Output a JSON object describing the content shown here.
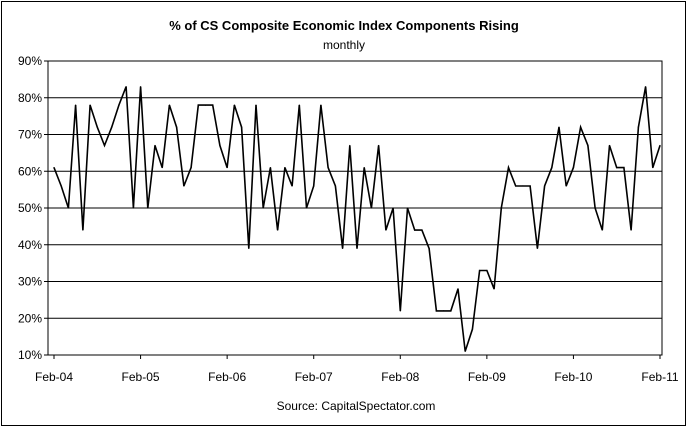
{
  "chart_data": {
    "type": "line",
    "title": "%  of CS Composite Economic Index Components Rising",
    "subtitle": "monthly",
    "source": "Source: CapitalSpectator.com",
    "xlabel": "",
    "ylabel": "",
    "ylim": [
      10,
      90
    ],
    "y_ticks": [
      "10%",
      "20%",
      "30%",
      "40%",
      "50%",
      "60%",
      "70%",
      "80%",
      "90%"
    ],
    "x_ticks": [
      "Feb-04",
      "Feb-05",
      "Feb-06",
      "Feb-07",
      "Feb-08",
      "Feb-09",
      "Feb-10",
      "Feb-11"
    ],
    "grid": "horizontal",
    "line_color": "#000000",
    "x": [
      "Feb-04",
      "Mar-04",
      "Apr-04",
      "May-04",
      "Jun-04",
      "Jul-04",
      "Aug-04",
      "Sep-04",
      "Oct-04",
      "Nov-04",
      "Dec-04",
      "Jan-05",
      "Feb-05",
      "Mar-05",
      "Apr-05",
      "May-05",
      "Jun-05",
      "Jul-05",
      "Aug-05",
      "Sep-05",
      "Oct-05",
      "Nov-05",
      "Dec-05",
      "Jan-06",
      "Feb-06",
      "Mar-06",
      "Apr-06",
      "May-06",
      "Jun-06",
      "Jul-06",
      "Aug-06",
      "Sep-06",
      "Oct-06",
      "Nov-06",
      "Dec-06",
      "Jan-07",
      "Feb-07",
      "Mar-07",
      "Apr-07",
      "May-07",
      "Jun-07",
      "Jul-07",
      "Aug-07",
      "Sep-07",
      "Oct-07",
      "Nov-07",
      "Dec-07",
      "Jan-08",
      "Feb-08",
      "Mar-08",
      "Apr-08",
      "May-08",
      "Jun-08",
      "Jul-08",
      "Aug-08",
      "Sep-08",
      "Oct-08",
      "Nov-08",
      "Dec-08",
      "Jan-09",
      "Feb-09",
      "Mar-09",
      "Apr-09",
      "May-09",
      "Jun-09",
      "Jul-09",
      "Aug-09",
      "Sep-09",
      "Oct-09",
      "Nov-09",
      "Dec-09",
      "Jan-10",
      "Feb-10",
      "Mar-10",
      "Apr-10",
      "May-10",
      "Jun-10",
      "Jul-10",
      "Aug-10",
      "Sep-10",
      "Oct-10",
      "Nov-10",
      "Dec-10",
      "Jan-11",
      "Feb-11"
    ],
    "series": [
      {
        "values": [
          61,
          56,
          50,
          78,
          44,
          78,
          72,
          67,
          72,
          78,
          83,
          50,
          83,
          50,
          67,
          61,
          78,
          72,
          56,
          61,
          78,
          78,
          78,
          67,
          61,
          78,
          72,
          39,
          78,
          50,
          61,
          44,
          61,
          56,
          78,
          50,
          56,
          78,
          61,
          56,
          39,
          67,
          39,
          61,
          50,
          67,
          44,
          50,
          22,
          50,
          44,
          44,
          39,
          22,
          22,
          22,
          28,
          11,
          17,
          33,
          33,
          28,
          50,
          61,
          56,
          56,
          56,
          39,
          56,
          61,
          72,
          56,
          61,
          72,
          67,
          50,
          44,
          67,
          61,
          61,
          44,
          72,
          83,
          61,
          67
        ]
      }
    ]
  }
}
